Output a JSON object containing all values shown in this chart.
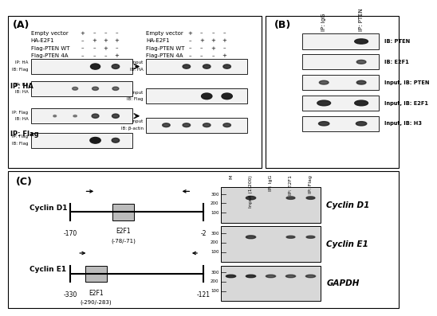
{
  "panel_A": {
    "label": "(A)",
    "left_table_rows": [
      [
        "Empty vector",
        "+",
        "–",
        "–",
        "–"
      ],
      [
        "HA-E2F1",
        "–",
        "+",
        "+",
        "+"
      ],
      [
        "Flag-PTEN WT",
        "–",
        "–",
        "+",
        "–"
      ],
      [
        "Flag-PTEN 4A",
        "–",
        "–",
        "–",
        "+"
      ]
    ],
    "right_table_rows": [
      [
        "Empty vector",
        "+",
        "–",
        "–",
        "–"
      ],
      [
        "HA-E2F1",
        "–",
        "+",
        "+",
        "+"
      ],
      [
        "Flag-PTEN WT",
        "–",
        "–",
        "+",
        "–"
      ],
      [
        "Flag-PTEN 4A",
        "–",
        "–",
        "–",
        "+"
      ]
    ],
    "ip_ha_label": "IP: HA",
    "ip_flag_label": "IP: Flag",
    "blot_labels_left": [
      [
        "IP: HA",
        "IB: Flag"
      ],
      [
        "IP: HA",
        "IB: HA"
      ],
      [
        "IP: Flag",
        "IB: HA"
      ],
      [
        "IP: Flag",
        "IB: Flag"
      ]
    ],
    "blot_labels_right": [
      [
        "Input",
        "IB: HA"
      ],
      [
        "Input",
        "IB: Flag"
      ],
      [
        "Input",
        "IB: β-actin"
      ]
    ]
  },
  "panel_B": {
    "label": "(B)",
    "col_labels": [
      "IP: IgG",
      "IP: PTEN"
    ],
    "row_labels": [
      "IB: PTEN",
      "IB: E2F1",
      "Input, IB: PTEN",
      "Input, IB: E2F1",
      "Input, IB: H3"
    ]
  },
  "panel_C": {
    "label": "(C)",
    "cyclin_d1": {
      "name": "Cyclin D1",
      "left_pos": "-170",
      "right_pos": "-2",
      "e2f1_label": "E2F1",
      "e2f1_pos": "(-78/-71)"
    },
    "cyclin_e1": {
      "name": "Cyclin E1",
      "left_pos": "-330",
      "right_pos": "-121",
      "e2f1_label": "E2F1",
      "e2f1_pos": "(-290/-283)"
    },
    "gel_col_labels": [
      "M",
      "Input (1:200)",
      "IP: IgG",
      "IP: E2F1",
      "IP: Flag"
    ],
    "gel_row_labels": [
      "Cyclin D1",
      "Cyclin E1",
      "GAPDH"
    ],
    "gel_size_markers": [
      "300",
      "200",
      "100"
    ]
  },
  "bg_color": "#ffffff",
  "border_color": "#000000",
  "text_color": "#000000"
}
